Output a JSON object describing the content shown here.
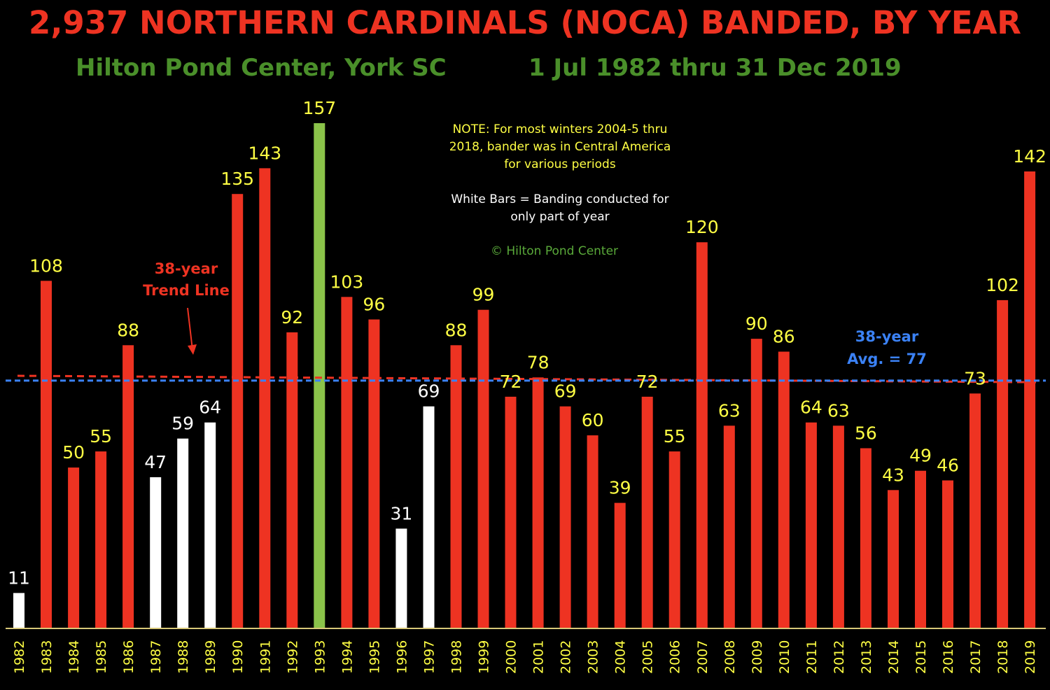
{
  "chart_data": {
    "type": "bar",
    "title": "2,937 NORTHERN CARDINALS (NOCA) BANDED, BY YEAR",
    "subtitle_left": "Hilton Pond Center, York SC",
    "subtitle_right": "1 Jul 1982 thru 31 Dec 2019",
    "categories": [
      "1982",
      "1983",
      "1984",
      "1985",
      "1986",
      "1987",
      "1988",
      "1989",
      "1990",
      "1991",
      "1992",
      "1993",
      "1994",
      "1995",
      "1996",
      "1997",
      "1998",
      "1999",
      "2000",
      "2001",
      "2002",
      "2003",
      "2004",
      "2005",
      "2006",
      "2007",
      "2008",
      "2009",
      "2010",
      "2011",
      "2012",
      "2013",
      "2014",
      "2015",
      "2016",
      "2017",
      "2018",
      "2019"
    ],
    "values": [
      11,
      108,
      50,
      55,
      88,
      47,
      59,
      64,
      135,
      143,
      92,
      157,
      103,
      96,
      31,
      69,
      88,
      99,
      72,
      78,
      69,
      60,
      39,
      72,
      55,
      120,
      63,
      90,
      86,
      64,
      63,
      56,
      43,
      49,
      46,
      73,
      102,
      142
    ],
    "bar_kinds": [
      "partial",
      "full",
      "full",
      "full",
      "full",
      "partial",
      "partial",
      "partial",
      "full",
      "full",
      "full",
      "max",
      "full",
      "full",
      "partial",
      "partial",
      "full",
      "full",
      "full",
      "full",
      "full",
      "full",
      "full",
      "full",
      "full",
      "full",
      "full",
      "full",
      "full",
      "full",
      "full",
      "full",
      "full",
      "full",
      "full",
      "full",
      "full",
      "full"
    ],
    "ylim": [
      0,
      157
    ],
    "average": 77,
    "average_label_line1": "38-year",
    "average_label_line2": "Avg. = 77",
    "trend_label_line1": "38-year",
    "trend_label_line2": "Trend Line",
    "trend_start_value": 78.5,
    "trend_end_value": 76.5,
    "notes": [
      "NOTE: For most winters 2004-5 thru",
      "2018, bander was in Central America",
      "for various periods",
      "White Bars = Banding conducted for",
      "only part of year",
      "© Hilton Pond Center"
    ],
    "colors": {
      "full": "#ee3322",
      "partial": "#ffffff",
      "max": "#8bc34a",
      "title": "#ee3322",
      "subtitle": "#4a8f2a",
      "label_yellow": "#ffff44",
      "label_white": "#ffffff",
      "average_line": "#3b82f6",
      "trend_line": "#ee3322",
      "axis": "#d8c878",
      "note_yellow": "#ffff44",
      "note_white": "#ffffff",
      "note_green": "#5aaa3a"
    }
  }
}
